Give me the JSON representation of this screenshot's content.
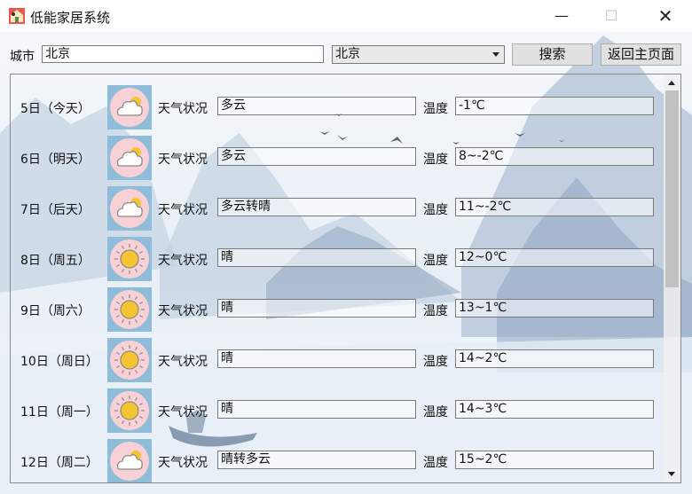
{
  "window": {
    "title": "低能家居系统",
    "min_glyph": "—",
    "max_glyph": "☐",
    "close_glyph": "✕"
  },
  "toolbar": {
    "city_label": "城市",
    "city_value": "北京",
    "select_value": "北京",
    "search_label": "搜索",
    "home_label": "返回主页面"
  },
  "forecast": {
    "condition_label": "天气状况",
    "temp_label": "温度",
    "rows": [
      {
        "day": "5日（今天）",
        "icon": "cloudy-icon",
        "condition": "多云",
        "temp": "-1℃"
      },
      {
        "day": "6日（明天）",
        "icon": "cloudy-icon",
        "condition": "多云",
        "temp": "8~-2℃"
      },
      {
        "day": "7日（后天）",
        "icon": "cloudy-icon",
        "condition": "多云转晴",
        "temp": "11~-2℃"
      },
      {
        "day": "8日（周五）",
        "icon": "sunny-icon",
        "condition": "晴",
        "temp": "12~0℃"
      },
      {
        "day": "9日（周六）",
        "icon": "sunny-icon",
        "condition": "晴",
        "temp": "13~1℃"
      },
      {
        "day": "10日（周日）",
        "icon": "sunny-icon",
        "condition": "晴",
        "temp": "14~2℃"
      },
      {
        "day": "11日（周一）",
        "icon": "sunny-icon",
        "condition": "晴",
        "temp": "14~3℃"
      },
      {
        "day": "12日（周二）",
        "icon": "cloudy-icon",
        "condition": "晴转多云",
        "temp": "15~2℃"
      }
    ]
  },
  "colors": {
    "icon_bg": "#8fbcd8",
    "sun_circle": "#f7d1d6",
    "sun": "#f5c531",
    "mountain_far": "#b9c9db",
    "mountain_near": "#7f98b6"
  }
}
